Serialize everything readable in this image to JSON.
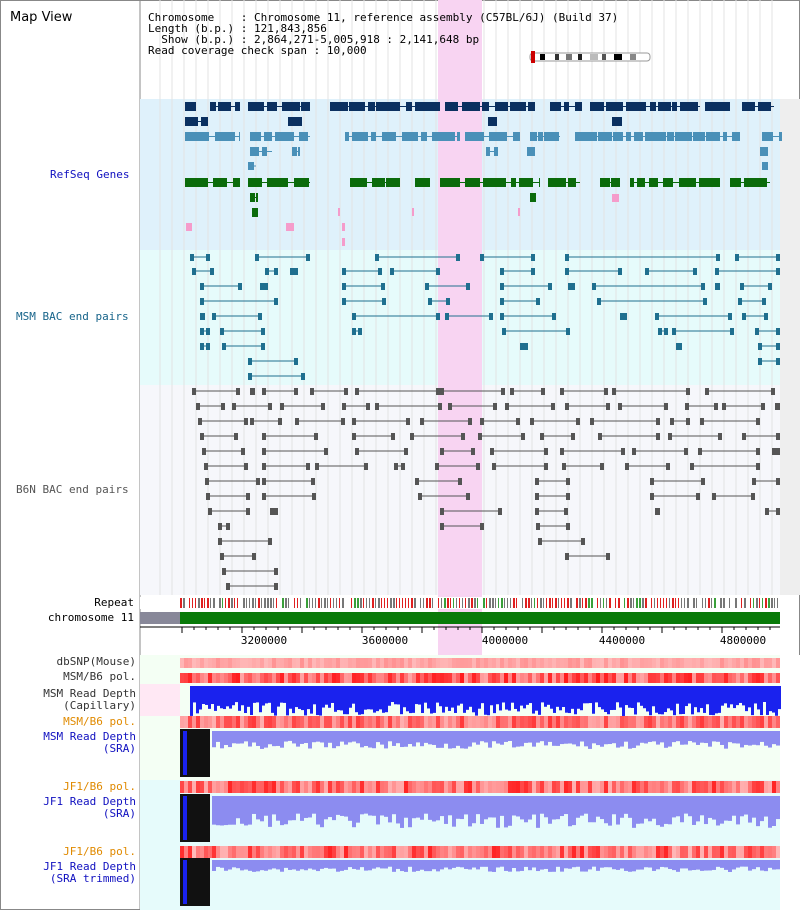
{
  "title": "Map View",
  "header": {
    "chromosome_key": "Chromosome",
    "chromosome_value": "Chromosome 11, reference assembly (C57BL/6J) (Build 37)",
    "length_key": "Length (b.p.)",
    "length_value": "121,843,856",
    "show_key": "Show (b.p.)",
    "show_value": "2,864,271-5,005,918 : 2,141,648 bp",
    "coverage_key": "Read coverage check span",
    "coverage_value": "10,000"
  },
  "tracks": {
    "refseq": "RefSeq Genes",
    "msm_bac": "MSM BAC end pairs",
    "b6n_bac": "B6N BAC end pairs",
    "repeat": "Repeat",
    "chromosome": "chromosome 11",
    "dbsnp": "dbSNP(Mouse)",
    "msm_pol1": "MSM/B6 pol.",
    "msm_depth_cap_1": "MSM Read Depth",
    "msm_depth_cap_2": "(Capillary)",
    "msm_pol2": "MSM/B6 pol.",
    "msm_depth_sra_1": "MSM Read Depth",
    "msm_depth_sra_2": "(SRA)",
    "jf1_pol1": "JF1/B6 pol.",
    "jf1_depth_sra_1": "JF1 Read Depth",
    "jf1_depth_sra_2": "(SRA)",
    "jf1_pol2": "JF1/B6 pol.",
    "jf1_depth_trim_1": "JF1 Read Depth",
    "jf1_depth_trim_2": "(SRA trimmed)"
  },
  "axis": {
    "ticks": [
      "3200000",
      "3600000",
      "4000000",
      "4400000",
      "4800000"
    ]
  },
  "colors": {
    "refseq_bg": "#dff1fb",
    "msm_bg": "#e6fbfb",
    "b6n_bg": "#f6f7fb",
    "highlight": "#f8d4f2",
    "navy": "#0b3060",
    "steel": "#4a90b8",
    "green": "#0b6b0b",
    "teal": "#1f6f8f",
    "gray": "#555555",
    "blue_depth": "#1a22ee",
    "lavender_depth": "#8c8cf0"
  }
}
